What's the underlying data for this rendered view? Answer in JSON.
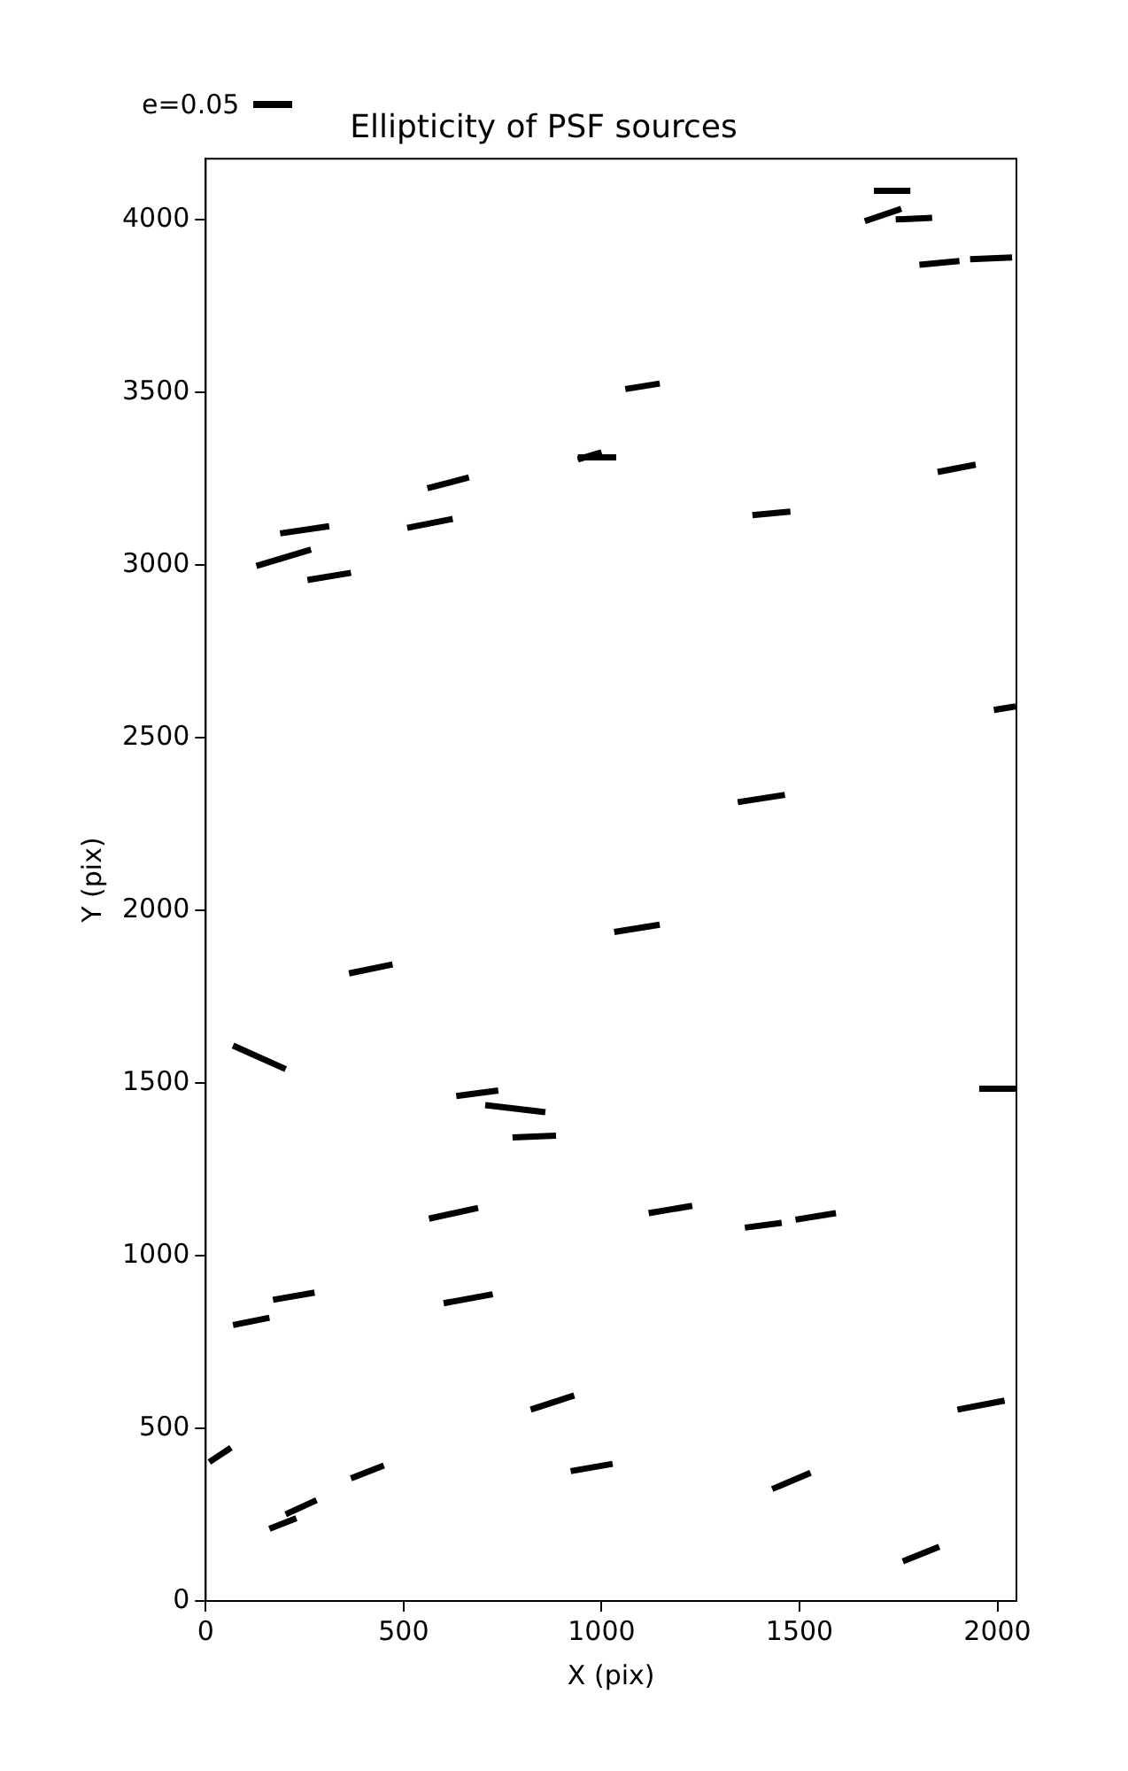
{
  "chart_data": {
    "type": "line",
    "title": "Ellipticity of PSF sources",
    "xlabel": "X (pix)",
    "ylabel": "Y (pix)",
    "xlim": [
      0,
      2048
    ],
    "ylim": [
      0,
      4176
    ],
    "xticks": [
      0,
      500,
      1000,
      1500,
      2000
    ],
    "yticks": [
      0,
      500,
      1000,
      1500,
      2000,
      2500,
      3000,
      3500,
      4000
    ],
    "grid": false,
    "legend": false,
    "marker": "none",
    "line_style": "solid",
    "annotations": [
      "e=0.05"
    ],
    "series": [
      {
        "color": "#000000",
        "x": [
          1688,
          1780
        ],
        "values": [
          4083,
          4083
        ]
      },
      {
        "color": "#000000",
        "x": [
          1665,
          1757
        ],
        "values": [
          3995,
          4031
        ]
      },
      {
        "color": "#000000",
        "x": [
          1743,
          1835
        ],
        "values": [
          4000,
          4005
        ]
      },
      {
        "color": "#000000",
        "x": [
          1803,
          1904
        ],
        "values": [
          3869,
          3880
        ]
      },
      {
        "color": "#000000",
        "x": [
          1931,
          2037
        ],
        "values": [
          3885,
          3890
        ]
      },
      {
        "color": "#000000",
        "x": [
          1060,
          1147
        ],
        "values": [
          3509,
          3525
        ]
      },
      {
        "color": "#000000",
        "x": [
          940,
          1000
        ],
        "values": [
          3305,
          3326
        ]
      },
      {
        "color": "#000000",
        "x": [
          940,
          1037
        ],
        "values": [
          3311,
          3311
        ]
      },
      {
        "color": "#000000",
        "x": [
          560,
          665
        ],
        "values": [
          3222,
          3253
        ]
      },
      {
        "color": "#000000",
        "x": [
          1381,
          1477
        ],
        "values": [
          3144,
          3154
        ]
      },
      {
        "color": "#000000",
        "x": [
          1849,
          1945
        ],
        "values": [
          3269,
          3290
        ]
      },
      {
        "color": "#000000",
        "x": [
          188,
          312
        ],
        "values": [
          3091,
          3112
        ]
      },
      {
        "color": "#000000",
        "x": [
          128,
          266
        ],
        "values": [
          2997,
          3044
        ]
      },
      {
        "color": "#000000",
        "x": [
          257,
          367
        ],
        "values": [
          2956,
          2977
        ]
      },
      {
        "color": "#000000",
        "x": [
          509,
          624
        ],
        "values": [
          3107,
          3133
        ]
      },
      {
        "color": "#000000",
        "x": [
          1991,
          2046
        ],
        "values": [
          2580,
          2590
        ]
      },
      {
        "color": "#000000",
        "x": [
          1344,
          1463
        ],
        "values": [
          2313,
          2334
        ]
      },
      {
        "color": "#000000",
        "x": [
          1032,
          1147
        ],
        "values": [
          1937,
          1958
        ]
      },
      {
        "color": "#000000",
        "x": [
          362,
          472
        ],
        "values": [
          1817,
          1843
        ]
      },
      {
        "color": "#000000",
        "x": [
          69,
          202
        ],
        "values": [
          1608,
          1540
        ]
      },
      {
        "color": "#000000",
        "x": [
          633,
          739
        ],
        "values": [
          1462,
          1478
        ]
      },
      {
        "color": "#000000",
        "x": [
          706,
          858
        ],
        "values": [
          1436,
          1415
        ]
      },
      {
        "color": "#000000",
        "x": [
          775,
          885
        ],
        "values": [
          1342,
          1347
        ]
      },
      {
        "color": "#000000",
        "x": [
          1954,
          2046
        ],
        "values": [
          1483,
          1483
        ]
      },
      {
        "color": "#000000",
        "x": [
          564,
          688
        ],
        "values": [
          1107,
          1138
        ]
      },
      {
        "color": "#000000",
        "x": [
          1119,
          1229
        ],
        "values": [
          1123,
          1144
        ]
      },
      {
        "color": "#000000",
        "x": [
          1362,
          1455
        ],
        "values": [
          1081,
          1095
        ]
      },
      {
        "color": "#000000",
        "x": [
          1490,
          1592
        ],
        "values": [
          1104,
          1123
        ]
      },
      {
        "color": "#000000",
        "x": [
          69,
          161
        ],
        "values": [
          799,
          820
        ]
      },
      {
        "color": "#000000",
        "x": [
          170,
          275
        ],
        "values": [
          872,
          893
        ]
      },
      {
        "color": "#000000",
        "x": [
          601,
          725
        ],
        "values": [
          862,
          888
        ]
      },
      {
        "color": "#000000",
        "x": [
          821,
          931
        ],
        "values": [
          554,
          595
        ]
      },
      {
        "color": "#000000",
        "x": [
          922,
          1028
        ],
        "values": [
          376,
          397
        ]
      },
      {
        "color": "#000000",
        "x": [
          1899,
          2018
        ],
        "values": [
          554,
          580
        ]
      },
      {
        "color": "#000000",
        "x": [
          9,
          64
        ],
        "values": [
          402,
          444
        ]
      },
      {
        "color": "#000000",
        "x": [
          202,
          280
        ],
        "values": [
          251,
          292
        ]
      },
      {
        "color": "#000000",
        "x": [
          367,
          450
        ],
        "values": [
          355,
          392
        ]
      },
      {
        "color": "#000000",
        "x": [
          1431,
          1528
        ],
        "values": [
          324,
          371
        ]
      },
      {
        "color": "#000000",
        "x": [
          161,
          229
        ],
        "values": [
          209,
          240
        ]
      },
      {
        "color": "#000000",
        "x": [
          1761,
          1853
        ],
        "values": [
          115,
          157
        ]
      }
    ]
  }
}
